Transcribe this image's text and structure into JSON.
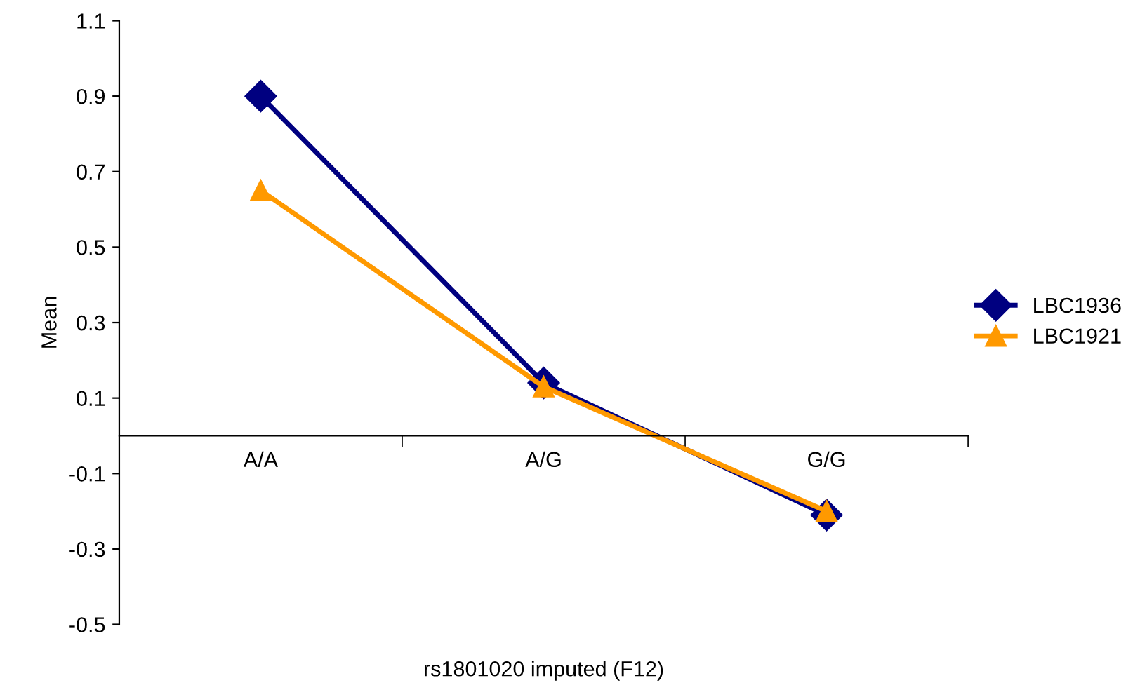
{
  "chart_data": {
    "type": "line",
    "xlabel": "rs1801020 imputed (F12)",
    "ylabel": "Mean",
    "categories": [
      "A/A",
      "A/G",
      "G/G"
    ],
    "series": [
      {
        "name": "LBC1936",
        "color": "#000080",
        "values": [
          0.9,
          0.14,
          -0.21
        ],
        "marker": "diamond"
      },
      {
        "name": "LBC1921",
        "color": "#ff9900",
        "values": [
          0.65,
          0.13,
          -0.2
        ],
        "marker": "triangle"
      }
    ],
    "ylim": [
      -0.5,
      1.1
    ],
    "yticks": [
      -0.5,
      -0.3,
      -0.1,
      0.1,
      0.3,
      0.5,
      0.7,
      0.9,
      1.1
    ],
    "grid": false,
    "legend": "right",
    "line_style": "solid"
  }
}
